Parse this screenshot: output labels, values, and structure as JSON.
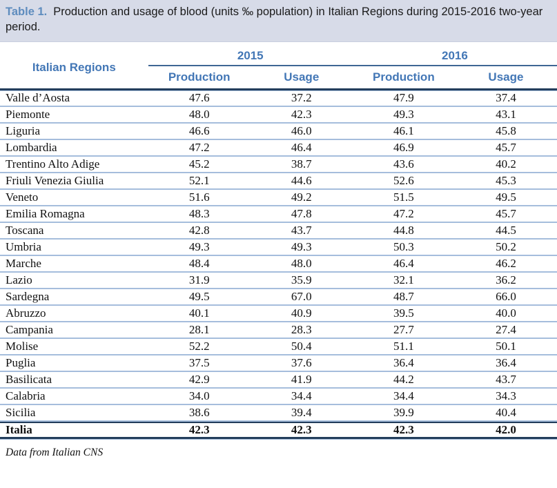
{
  "title": {
    "label": "Table 1.",
    "text": "Production and usage of blood (units ‰ population) in Italian Regions during 2015-2016 two-year period."
  },
  "table": {
    "region_header": "Italian Regions",
    "year_groups": [
      {
        "year": "2015",
        "columns": [
          "Production",
          "Usage"
        ]
      },
      {
        "year": "2016",
        "columns": [
          "Production",
          "Usage"
        ]
      }
    ],
    "rows": [
      {
        "region": "Valle d’Aosta",
        "values": [
          "47.6",
          "37.2",
          "47.9",
          "37.4"
        ],
        "is_total": false
      },
      {
        "region": "Piemonte",
        "values": [
          "48.0",
          "42.3",
          "49.3",
          "43.1"
        ],
        "is_total": false
      },
      {
        "region": "Liguria",
        "values": [
          "46.6",
          "46.0",
          "46.1",
          "45.8"
        ],
        "is_total": false
      },
      {
        "region": "Lombardia",
        "values": [
          "47.2",
          "46.4",
          "46.9",
          "45.7"
        ],
        "is_total": false
      },
      {
        "region": "Trentino Alto Adige",
        "values": [
          "45.2",
          "38.7",
          "43.6",
          "40.2"
        ],
        "is_total": false
      },
      {
        "region": "Friuli Venezia Giulia",
        "values": [
          "52.1",
          "44.6",
          "52.6",
          "45.3"
        ],
        "is_total": false
      },
      {
        "region": "Veneto",
        "values": [
          "51.6",
          "49.2",
          "51.5",
          "49.5"
        ],
        "is_total": false
      },
      {
        "region": "Emilia Romagna",
        "values": [
          "48.3",
          "47.8",
          "47.2",
          "45.7"
        ],
        "is_total": false
      },
      {
        "region": "Toscana",
        "values": [
          "42.8",
          "43.7",
          "44.8",
          "44.5"
        ],
        "is_total": false
      },
      {
        "region": "Umbria",
        "values": [
          "49.3",
          "49.3",
          "50.3",
          "50.2"
        ],
        "is_total": false
      },
      {
        "region": "Marche",
        "values": [
          "48.4",
          "48.0",
          "46.4",
          "46.2"
        ],
        "is_total": false
      },
      {
        "region": "Lazio",
        "values": [
          "31.9",
          "35.9",
          "32.1",
          "36.2"
        ],
        "is_total": false
      },
      {
        "region": "Sardegna",
        "values": [
          "49.5",
          "67.0",
          "48.7",
          "66.0"
        ],
        "is_total": false
      },
      {
        "region": "Abruzzo",
        "values": [
          "40.1",
          "40.9",
          "39.5",
          "40.0"
        ],
        "is_total": false
      },
      {
        "region": "Campania",
        "values": [
          "28.1",
          "28.3",
          "27.7",
          "27.4"
        ],
        "is_total": false
      },
      {
        "region": "Molise",
        "values": [
          "52.2",
          "50.4",
          "51.1",
          "50.1"
        ],
        "is_total": false
      },
      {
        "region": "Puglia",
        "values": [
          "37.5",
          "37.6",
          "36.4",
          "36.4"
        ],
        "is_total": false
      },
      {
        "region": "Basilicata",
        "values": [
          "42.9",
          "41.9",
          "44.2",
          "43.7"
        ],
        "is_total": false
      },
      {
        "region": "Calabria",
        "values": [
          "34.0",
          "34.4",
          "34.4",
          "34.3"
        ],
        "is_total": false
      },
      {
        "region": "Sicilia",
        "values": [
          "38.6",
          "39.4",
          "39.9",
          "40.4"
        ],
        "is_total": false
      },
      {
        "region": "Italia",
        "values": [
          "42.3",
          "42.3",
          "42.3",
          "42.0"
        ],
        "is_total": true
      }
    ]
  },
  "footer": {
    "source": "Data from Italian CNS"
  },
  "colors": {
    "title-bg": "#D7DBE8",
    "accent": "#5E8CBE",
    "header-blue": "#4377B6",
    "year-line": "#3E6694",
    "dark-line": "#233E5C",
    "light-line": "#A5BDDC",
    "text": "#111111"
  }
}
